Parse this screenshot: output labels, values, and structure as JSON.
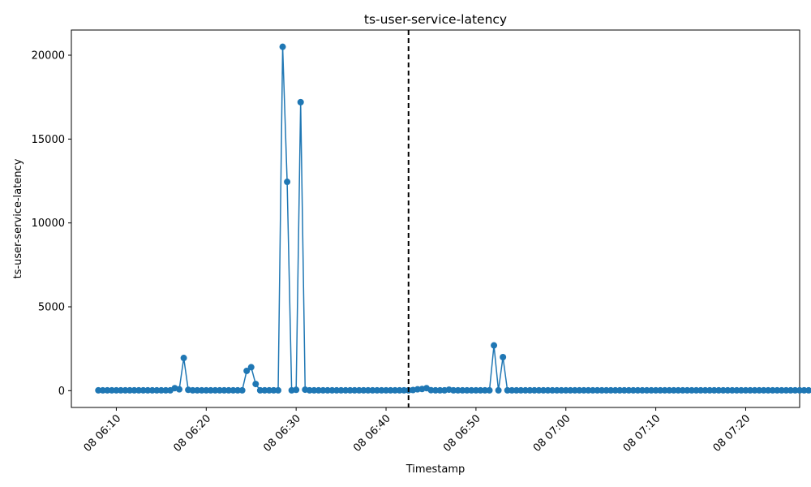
{
  "chart_data": {
    "type": "line",
    "title": "ts-user-service-latency",
    "xlabel": "Timestamp",
    "ylabel": "ts-user-service-latency",
    "x_start": "08 06:08",
    "x_step_seconds": 30,
    "xlim": [
      "08 06:05",
      "08 07:26"
    ],
    "ylim": [
      -1000,
      21500
    ],
    "x_ticks": [
      "08 06:10",
      "08 06:20",
      "08 06:30",
      "08 06:40",
      "08 06:50",
      "08 07:00",
      "08 07:10",
      "08 07:20"
    ],
    "y_ticks": [
      0,
      5000,
      10000,
      15000,
      20000
    ],
    "y_tick_labels": [
      "0",
      "5000",
      "10000",
      "15000",
      "20000"
    ],
    "vline": "08 06:42:30",
    "grid": false,
    "legend": "none",
    "color": "#1f77b4",
    "series": [
      {
        "values": [
          20,
          20,
          20,
          20,
          20,
          20,
          20,
          20,
          20,
          20,
          20,
          20,
          20,
          20,
          20,
          20,
          20,
          150,
          80,
          1950,
          50,
          20,
          20,
          20,
          20,
          20,
          20,
          20,
          20,
          20,
          20,
          20,
          20,
          1180,
          1400,
          400,
          20,
          20,
          20,
          20,
          20,
          20500,
          12450,
          20,
          50,
          17200,
          60,
          20,
          20,
          20,
          20,
          20,
          20,
          20,
          20,
          20,
          20,
          20,
          20,
          20,
          20,
          20,
          20,
          20,
          20,
          20,
          20,
          20,
          20,
          20,
          40,
          80,
          100,
          150,
          30,
          20,
          20,
          20,
          60,
          20,
          20,
          20,
          20,
          20,
          20,
          20,
          20,
          20,
          2700,
          20,
          2000,
          20,
          20,
          20,
          20,
          20,
          20,
          20,
          20,
          20,
          20,
          20,
          20,
          20,
          20,
          20,
          20,
          20,
          20,
          20,
          20,
          20,
          20,
          20,
          20,
          20,
          20,
          20,
          20,
          20,
          20,
          20,
          20,
          20,
          20,
          20,
          20,
          20,
          20,
          20,
          20,
          20,
          20,
          20,
          20,
          20,
          20,
          20,
          20,
          20,
          20,
          20,
          20,
          20,
          20,
          20,
          20,
          20,
          20,
          20,
          20,
          20,
          20,
          20,
          20,
          20,
          20,
          20,
          20,
          20,
          20,
          20,
          20,
          20
        ]
      }
    ]
  }
}
